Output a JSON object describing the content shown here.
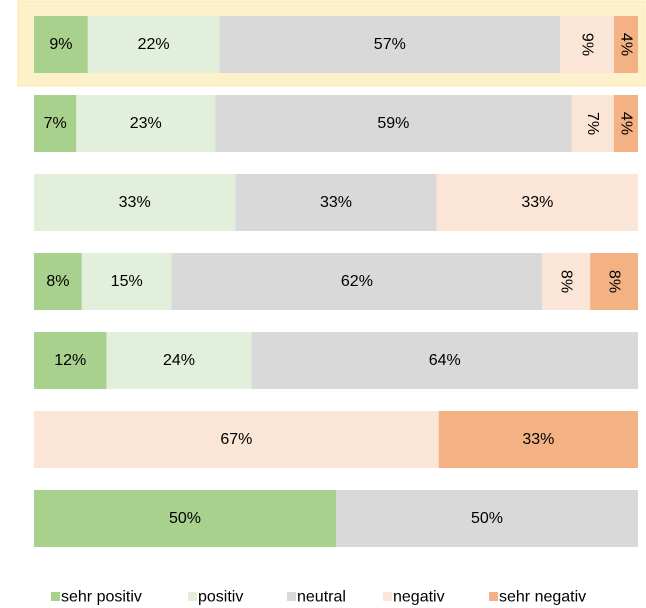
{
  "chart_data": {
    "type": "stacked_bar_100",
    "orientation": "horizontal",
    "categories": [
      null,
      null,
      null,
      null,
      null,
      null,
      null
    ],
    "series": [
      {
        "name": "sehr positiv",
        "color": "#a9d18e",
        "values": [
          9,
          7,
          0,
          8,
          12,
          0,
          50
        ],
        "value_labels": [
          "9%",
          "7%",
          null,
          "8%",
          "12%",
          null,
          "50%"
        ]
      },
      {
        "name": "positiv",
        "color": "#e2efda",
        "values": [
          22,
          23,
          33,
          15,
          24,
          0,
          0
        ],
        "value_labels": [
          "22%",
          "23%",
          "33%",
          "15%",
          "24%",
          null,
          null
        ]
      },
      {
        "name": "neutral",
        "color": "#d9d9d9",
        "values": [
          57,
          59,
          33,
          62,
          64,
          0,
          50
        ],
        "value_labels": [
          "57%",
          "59%",
          "33%",
          "62%",
          "64%",
          null,
          "50%"
        ]
      },
      {
        "name": "negativ",
        "color": "#fbe5d6",
        "values": [
          9,
          7,
          33,
          8,
          0,
          67,
          0
        ],
        "value_labels": [
          "9%",
          "7%",
          "33%",
          "8%",
          null,
          "67%",
          null
        ]
      },
      {
        "name": "sehr negativ",
        "color": "#f4b183",
        "values": [
          4,
          4,
          0,
          8,
          0,
          33,
          0
        ],
        "value_labels": [
          "4%",
          "4%",
          null,
          "8%",
          null,
          "33%",
          null
        ]
      }
    ],
    "legend": "bottom"
  }
}
